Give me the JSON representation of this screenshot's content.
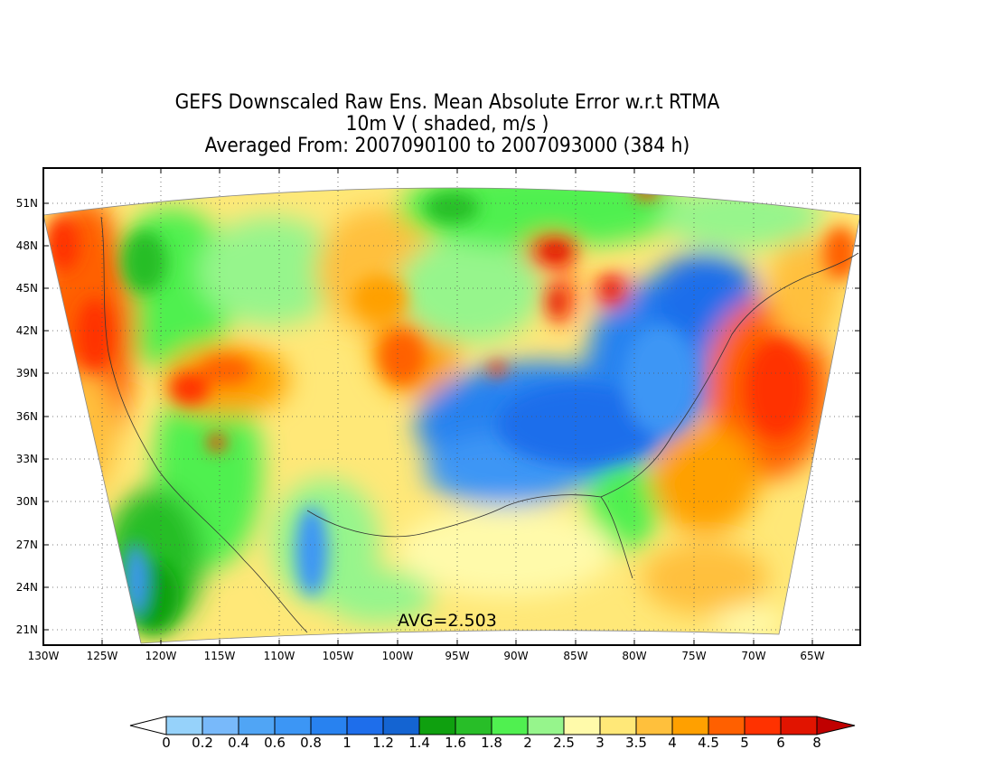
{
  "title": {
    "line1": "GEFS Downscaled Raw Ens. Mean Absolute Error w.r.t RTMA",
    "line2": "10m V ( shaded, m/s )",
    "line3": "Averaged From: 2007090100 to 2007093000 (384 h)"
  },
  "map": {
    "lat_labels": [
      "51N",
      "48N",
      "45N",
      "42N",
      "39N",
      "36N",
      "33N",
      "30N",
      "27N",
      "24N",
      "21N"
    ],
    "lon_labels": [
      "130W",
      "125W",
      "120W",
      "115W",
      "110W",
      "105W",
      "100W",
      "95W",
      "90W",
      "85W",
      "80W",
      "75W",
      "70W",
      "65W"
    ],
    "average_text": "AVG=2.503",
    "grid": "dotted",
    "field": "mean absolute error of 10m V wind"
  },
  "colorbar": {
    "labels": [
      "0",
      "0.2",
      "0.4",
      "0.6",
      "0.8",
      "1",
      "1.2",
      "1.4",
      "1.6",
      "1.8",
      "2",
      "2.5",
      "3",
      "3.5",
      "4",
      "4.5",
      "5",
      "6",
      "8"
    ],
    "colors": [
      "#96d2fa",
      "#78b9fa",
      "#50a5f5",
      "#3c96f5",
      "#2882f0",
      "#1e6eeb",
      "#1464d2",
      "#0fa00f",
      "#28be28",
      "#50f050",
      "#96f58c",
      "#fffaaa",
      "#ffe878",
      "#ffc03c",
      "#ffa000",
      "#ff6000",
      "#ff3200",
      "#e11400",
      "#a50000"
    ],
    "low_extend_color": "#ffffff",
    "high_extend_color": "#c00000"
  }
}
